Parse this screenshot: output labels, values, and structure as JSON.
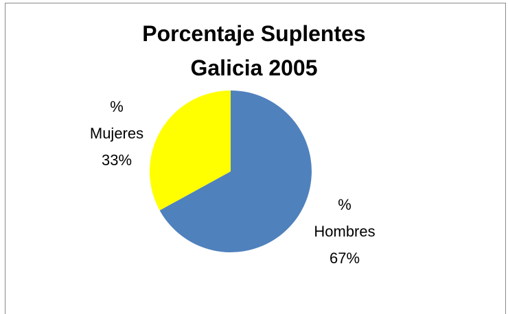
{
  "chart_data": {
    "type": "pie",
    "title": "Porcentaje Suplentes Galicia 2005",
    "categories": [
      "% Hombres",
      "% Mujeres"
    ],
    "values": [
      67,
      33
    ],
    "value_labels": [
      "67%",
      "33%"
    ],
    "colors": [
      "#4f81bd",
      "#ffff00"
    ]
  }
}
